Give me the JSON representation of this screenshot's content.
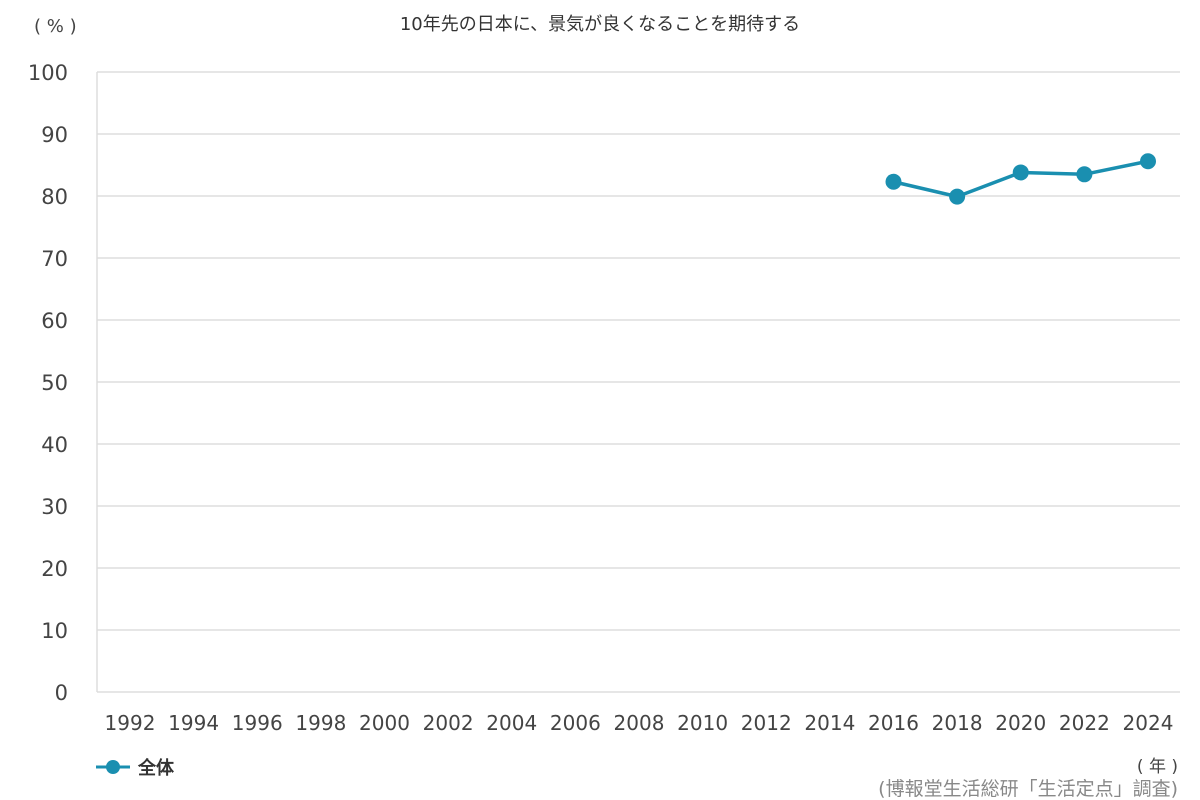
{
  "title": "10年先の日本に、景気が良くなることを期待する",
  "y_unit": "( % )",
  "x_unit": "( 年 )",
  "source": "(博報堂生活総研「生活定点」調査)",
  "legend": [
    {
      "label": "全体",
      "color": "#1a8fb0"
    }
  ],
  "colors": {
    "series": "#1a8fb0",
    "grid": "#dddddd",
    "axis_text": "#444444"
  },
  "chart_data": {
    "type": "line",
    "x_ticks": [
      "1992",
      "1994",
      "1996",
      "1998",
      "2000",
      "2002",
      "2004",
      "2006",
      "2008",
      "2010",
      "2012",
      "2014",
      "2016",
      "2018",
      "2020",
      "2022",
      "2024"
    ],
    "y_ticks": [
      0,
      10,
      20,
      30,
      40,
      50,
      60,
      70,
      80,
      90,
      100
    ],
    "ylim": [
      0,
      100
    ],
    "grid": true,
    "legend_position": "bottom-left",
    "series": [
      {
        "name": "全体",
        "x": [
          "2016",
          "2018",
          "2020",
          "2022",
          "2024"
        ],
        "values": [
          82.3,
          79.9,
          83.8,
          83.5,
          85.6
        ]
      }
    ]
  }
}
